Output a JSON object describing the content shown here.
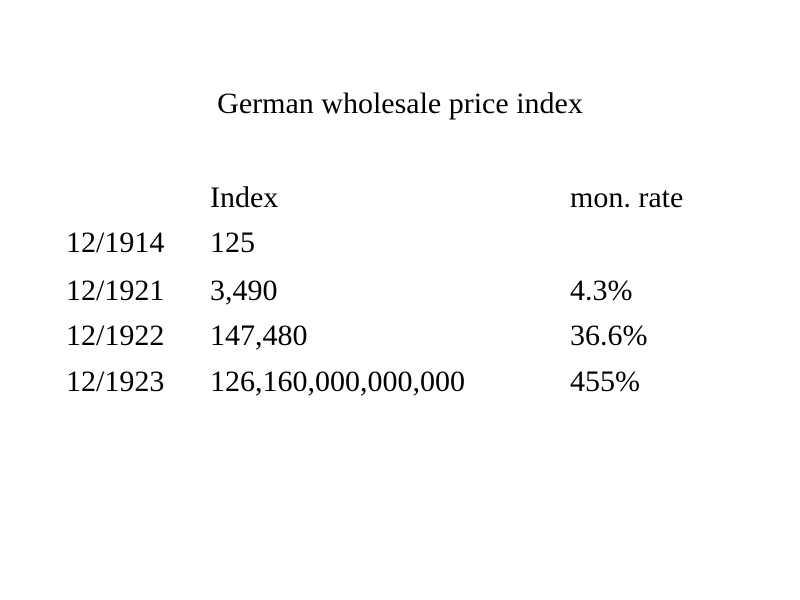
{
  "title": "German wholesale price index",
  "table": {
    "headers": {
      "date": "",
      "index": "Index",
      "rate": "mon. rate"
    },
    "rows": [
      {
        "date": "12/1914",
        "index": "125",
        "rate": ""
      },
      {
        "date": "12/1921",
        "index": "3,490",
        "rate": "4.3%"
      },
      {
        "date": "12/1922",
        "index": "147,480",
        "rate": "36.6%"
      },
      {
        "date": "12/1923",
        "index": "126,160,000,000,000",
        "rate": "455%"
      }
    ]
  }
}
